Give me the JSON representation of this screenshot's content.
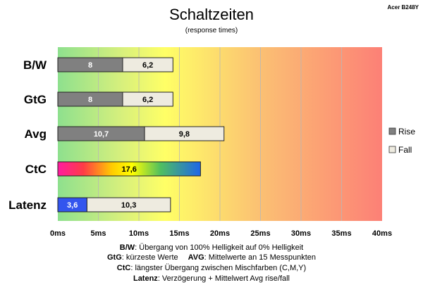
{
  "model_label": "Acer B248Y",
  "chart_data": {
    "type": "bar",
    "title": "Schaltzeiten",
    "subtitle": "(response times)",
    "categories": [
      "B/W",
      "GtG",
      "Avg",
      "CtC",
      "Latenz"
    ],
    "xlim": [
      0,
      40
    ],
    "x_ticks": [
      "0ms",
      "5ms",
      "10ms",
      "15ms",
      "20ms",
      "25ms",
      "30ms",
      "35ms",
      "40ms"
    ],
    "x_tick_values": [
      0,
      5,
      10,
      15,
      20,
      25,
      30,
      35,
      40
    ],
    "grid": true,
    "background": "gradient green-yellow-orange-red",
    "legend_position": "right",
    "legend": [
      {
        "name": "Rise",
        "color": "#808080"
      },
      {
        "name": "Fall",
        "color": "#eeebe0"
      }
    ],
    "series": [
      {
        "name": "Rise",
        "color": "#808080",
        "values": [
          8,
          8,
          10.7,
          null,
          null
        ],
        "labels": [
          "8",
          "8",
          "10,7",
          "",
          ""
        ]
      },
      {
        "name": "Fall",
        "color": "#eeebe0",
        "values": [
          6.2,
          6.2,
          9.8,
          null,
          10.3
        ],
        "labels": [
          "6,2",
          "6,2",
          "9,8",
          "",
          "10,3"
        ]
      }
    ],
    "ctc": {
      "value": 17.6,
      "label": "17,6",
      "style": "rainbow"
    },
    "latency": {
      "value": 3.6,
      "label": "3,6",
      "color": "#3355ee"
    }
  },
  "notes": [
    {
      "bold": "B/W",
      "text": ": Übergang von 100% Helligkeit auf 0% Helligkeit"
    },
    {
      "bold": "GtG",
      "text": ": kürzeste Werte",
      "bold2": "AVG",
      "text2": ": Mittelwerte an 15 Messpunkten"
    },
    {
      "bold": "CtC",
      "text": ": längster Übergang zwischen Mischfarben (C,M,Y)"
    },
    {
      "bold": "Latenz",
      "text": ": Verzögerung + Mittelwert Avg rise/fall"
    }
  ]
}
